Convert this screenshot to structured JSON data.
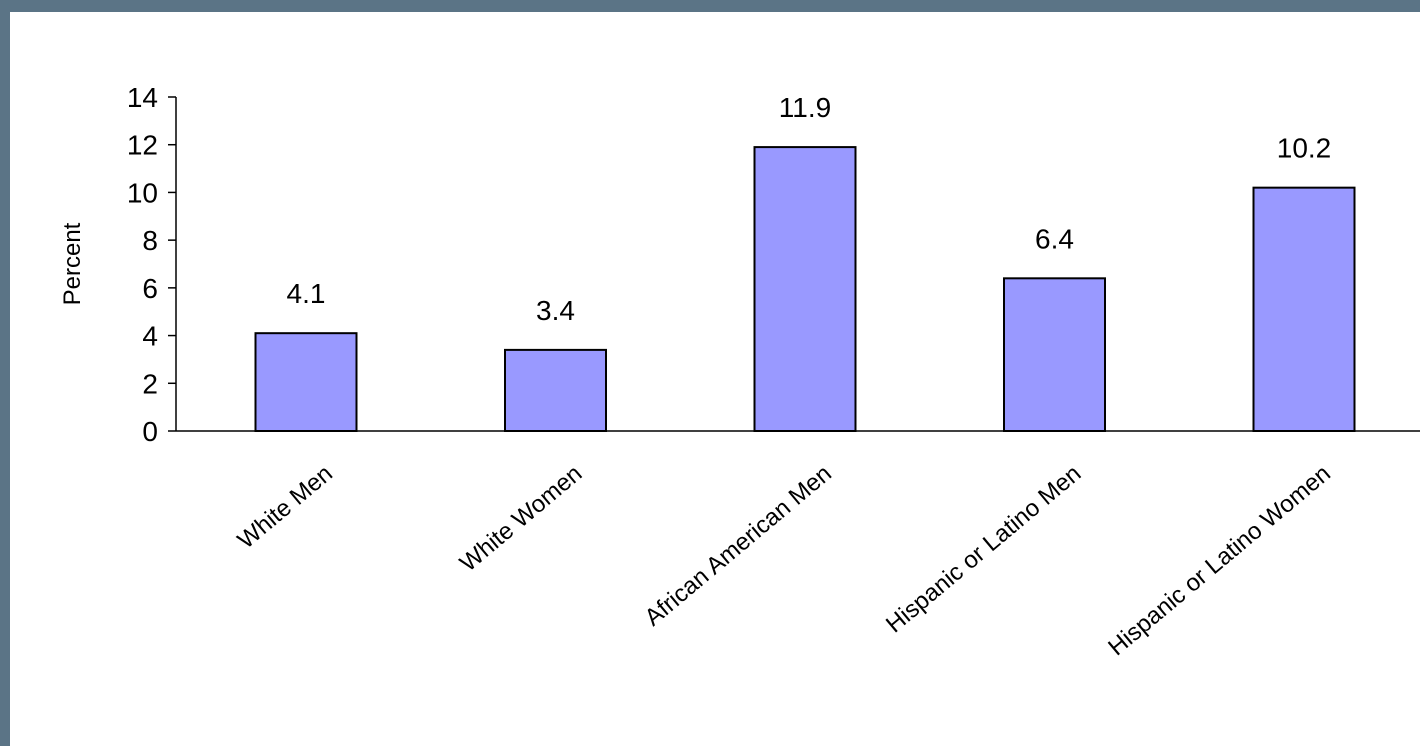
{
  "chart_data": {
    "type": "bar",
    "categories": [
      "White Men",
      "White Women",
      "African American Men",
      "Hispanic or Latino Men",
      "Hispanic or Latino Women"
    ],
    "values": [
      4.1,
      3.4,
      11.9,
      6.4,
      10.2
    ],
    "data_labels": [
      "4.1",
      "3.4",
      "11.9",
      "6.4",
      "10.2"
    ],
    "ylabel": "Percent",
    "ylim": [
      0,
      14
    ],
    "yticks": [
      0,
      2,
      4,
      6,
      8,
      10,
      12,
      14
    ],
    "grid": false,
    "legend": "none",
    "bar_color": "#9999ff",
    "bar_stroke": "#000000"
  }
}
